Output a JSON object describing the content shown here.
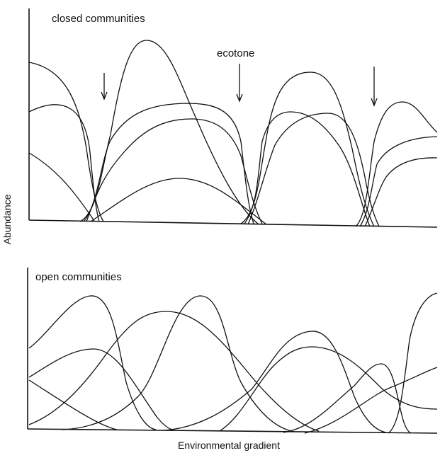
{
  "figure": {
    "y_axis_label": "Abundance",
    "x_axis_label": "Environmental gradient"
  },
  "top_panel": {
    "title": "closed communities",
    "annotation": "ecotone"
  },
  "bottom_panel": {
    "title": "open communities"
  }
}
